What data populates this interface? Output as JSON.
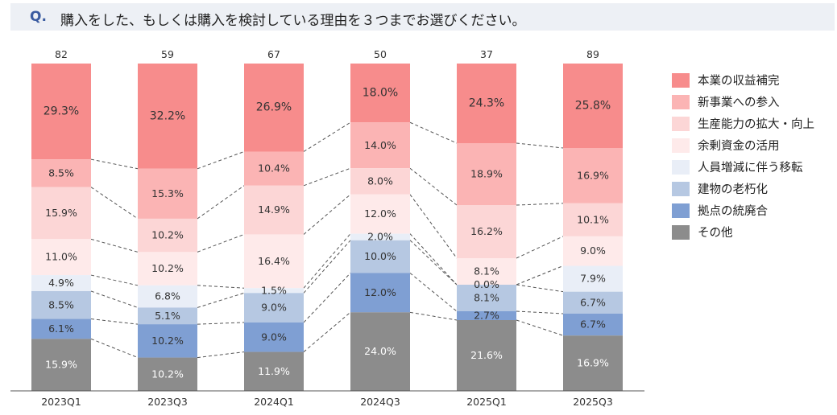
{
  "header": {
    "q_label": "Q.",
    "question": "購入をした、もしくは購入を検討している理由を３つまでお選びください。"
  },
  "chart_data": {
    "type": "bar",
    "stacked": true,
    "percent_of_total": true,
    "categories": [
      "2023Q1",
      "2023Q3",
      "2024Q1",
      "2024Q3",
      "2025Q1",
      "2025Q3"
    ],
    "n_counts": [
      "82",
      "59",
      "67",
      "50",
      "37",
      "89"
    ],
    "series": [
      {
        "name": "本業の収益補完",
        "color": "#f78c8c",
        "values": [
          29.3,
          32.2,
          26.9,
          18.0,
          24.3,
          25.8
        ],
        "labels": [
          "29.3%",
          "32.2%",
          "26.9%",
          "18.0%",
          "24.3%",
          "25.8%"
        ]
      },
      {
        "name": "新事業への参入",
        "color": "#fbb4b4",
        "values": [
          8.5,
          15.3,
          10.4,
          14.0,
          18.9,
          16.9
        ],
        "labels": [
          "8.5%",
          "15.3%",
          "10.4%",
          "14.0%",
          "18.9%",
          "16.9%"
        ]
      },
      {
        "name": "生産能力の拡大・向上",
        "color": "#fcd6d6",
        "values": [
          15.9,
          10.2,
          14.9,
          8.0,
          16.2,
          10.1
        ],
        "labels": [
          "15.9%",
          "10.2%",
          "14.9%",
          "8.0%",
          "16.2%",
          "10.1%"
        ]
      },
      {
        "name": "余剰資金の活用",
        "color": "#feeaea",
        "values": [
          11.0,
          10.2,
          16.4,
          12.0,
          8.1,
          9.0
        ],
        "labels": [
          "11.0%",
          "10.2%",
          "16.4%",
          "12.0%",
          "8.1%",
          "9.0%"
        ]
      },
      {
        "name": "人員増減に伴う移転",
        "color": "#e9eef7",
        "values": [
          4.9,
          6.8,
          1.5,
          2.0,
          0.0,
          7.9
        ],
        "labels": [
          "4.9%",
          "6.8%",
          "1.5%",
          "2.0%",
          "0.0%",
          "7.9%"
        ]
      },
      {
        "name": "建物の老朽化",
        "color": "#b6c8e2",
        "values": [
          8.5,
          5.1,
          9.0,
          10.0,
          8.1,
          6.7
        ],
        "labels": [
          "8.5%",
          "5.1%",
          "9.0%",
          "10.0%",
          "8.1%",
          "6.7%"
        ]
      },
      {
        "name": "拠点の統廃合",
        "color": "#7f9fd3",
        "values": [
          6.1,
          10.2,
          9.0,
          12.0,
          2.7,
          6.7
        ],
        "labels": [
          "6.1%",
          "10.2%",
          "9.0%",
          "12.0%",
          "2.7%",
          "6.7%"
        ]
      },
      {
        "name": "その他",
        "color": "#8c8c8c",
        "values": [
          15.9,
          10.2,
          11.9,
          24.0,
          21.6,
          16.9
        ],
        "labels": [
          "15.9%",
          "10.2%",
          "11.9%",
          "24.0%",
          "21.6%",
          "16.9%"
        ]
      }
    ],
    "ylim": [
      0,
      100
    ],
    "legend_position": "right",
    "connector_lines": "dashed"
  }
}
